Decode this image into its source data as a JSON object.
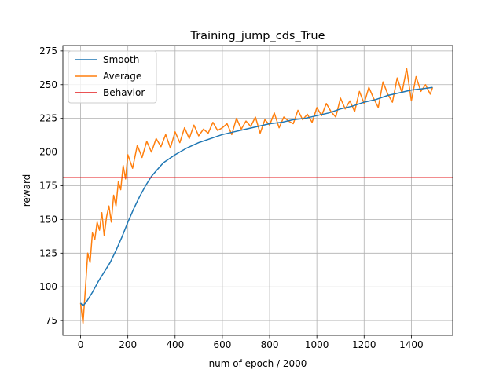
{
  "chart_data": {
    "type": "line",
    "title": "Training_jump_cds_True",
    "xlabel": "num of epoch / 2000",
    "ylabel": "reward",
    "xlim": [
      -75,
      1575
    ],
    "ylim": [
      64,
      279
    ],
    "xticks": [
      0,
      200,
      400,
      600,
      800,
      1000,
      1200,
      1400
    ],
    "yticks": [
      75,
      100,
      125,
      150,
      175,
      200,
      225,
      250,
      275
    ],
    "grid": true,
    "legend_position": "top-left",
    "series": [
      {
        "name": "Smooth",
        "color": "#1f77b4",
        "x": [
          0,
          10,
          25,
          50,
          75,
          100,
          125,
          150,
          175,
          200,
          225,
          250,
          275,
          300,
          325,
          350,
          400,
          450,
          500,
          550,
          600,
          650,
          700,
          750,
          800,
          850,
          900,
          950,
          1000,
          1050,
          1100,
          1150,
          1200,
          1250,
          1300,
          1350,
          1400,
          1450,
          1490
        ],
        "y": [
          88,
          86,
          89,
          96,
          104,
          111,
          118,
          127,
          137,
          148,
          158,
          167,
          175,
          182,
          187,
          192,
          198,
          203,
          207,
          210,
          213,
          215,
          217,
          219,
          221,
          222,
          224,
          225,
          227,
          229,
          232,
          234,
          237,
          239,
          242,
          244,
          246,
          247,
          248
        ]
      },
      {
        "name": "Average",
        "color": "#ff7f0e",
        "x": [
          0,
          10,
          20,
          30,
          40,
          50,
          60,
          70,
          80,
          90,
          100,
          110,
          120,
          130,
          140,
          150,
          160,
          170,
          180,
          190,
          200,
          220,
          240,
          260,
          280,
          300,
          320,
          340,
          360,
          380,
          400,
          420,
          440,
          460,
          480,
          500,
          520,
          540,
          560,
          580,
          600,
          620,
          640,
          660,
          680,
          700,
          720,
          740,
          760,
          780,
          800,
          820,
          840,
          860,
          880,
          900,
          920,
          940,
          960,
          980,
          1000,
          1020,
          1040,
          1060,
          1080,
          1100,
          1120,
          1140,
          1160,
          1180,
          1200,
          1220,
          1240,
          1260,
          1280,
          1300,
          1320,
          1340,
          1360,
          1380,
          1400,
          1420,
          1440,
          1460,
          1480,
          1490
        ],
        "y": [
          88,
          73,
          98,
          125,
          118,
          140,
          135,
          148,
          142,
          155,
          138,
          152,
          160,
          148,
          168,
          160,
          178,
          172,
          190,
          180,
          198,
          188,
          205,
          196,
          208,
          200,
          210,
          204,
          213,
          203,
          215,
          207,
          218,
          210,
          220,
          212,
          217,
          214,
          222,
          216,
          218,
          221,
          213,
          225,
          217,
          223,
          219,
          226,
          214,
          224,
          220,
          229,
          218,
          226,
          223,
          221,
          231,
          224,
          228,
          222,
          233,
          227,
          236,
          230,
          226,
          240,
          232,
          238,
          230,
          245,
          236,
          248,
          240,
          233,
          252,
          243,
          237,
          255,
          244,
          262,
          238,
          256,
          245,
          250,
          243,
          248
        ]
      },
      {
        "name": "Behavior",
        "color": "#e41a1c",
        "x": [
          -75,
          1575
        ],
        "y": [
          181,
          181
        ]
      }
    ]
  }
}
